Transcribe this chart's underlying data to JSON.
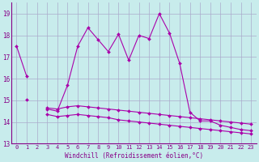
{
  "xlabel": "Windchill (Refroidissement éolien,°C)",
  "background_color": "#c8ecec",
  "grid_color": "#aaaacc",
  "line_color": "#aa00aa",
  "ylim": [
    13,
    19.5
  ],
  "yticks": [
    13,
    14,
    15,
    16,
    17,
    18,
    19
  ],
  "xticks": [
    0,
    1,
    2,
    3,
    4,
    5,
    6,
    7,
    8,
    9,
    10,
    11,
    12,
    13,
    14,
    15,
    16,
    17,
    18,
    19,
    20,
    21,
    22,
    23
  ],
  "series": {
    "upper": [
      17.5,
      16.1,
      null,
      14.6,
      14.5,
      15.7,
      17.5,
      18.35,
      17.8,
      17.25,
      18.05,
      16.85,
      18.0,
      17.85,
      19.0,
      18.1,
      16.7,
      14.45,
      14.05,
      14.05,
      13.85,
      13.75,
      13.65,
      13.6
    ],
    "middle": [
      null,
      15.05,
      null,
      14.65,
      14.6,
      14.7,
      14.75,
      14.7,
      14.65,
      14.6,
      14.55,
      14.5,
      14.45,
      14.4,
      14.35,
      14.3,
      14.25,
      14.2,
      14.15,
      14.1,
      14.05,
      14.0,
      13.95,
      13.9
    ],
    "lower": [
      null,
      null,
      null,
      14.35,
      14.25,
      14.3,
      14.35,
      14.3,
      14.25,
      14.2,
      14.1,
      14.05,
      14.0,
      13.95,
      13.9,
      13.85,
      13.8,
      13.75,
      13.7,
      13.65,
      13.6,
      13.55,
      13.5,
      13.45
    ]
  }
}
